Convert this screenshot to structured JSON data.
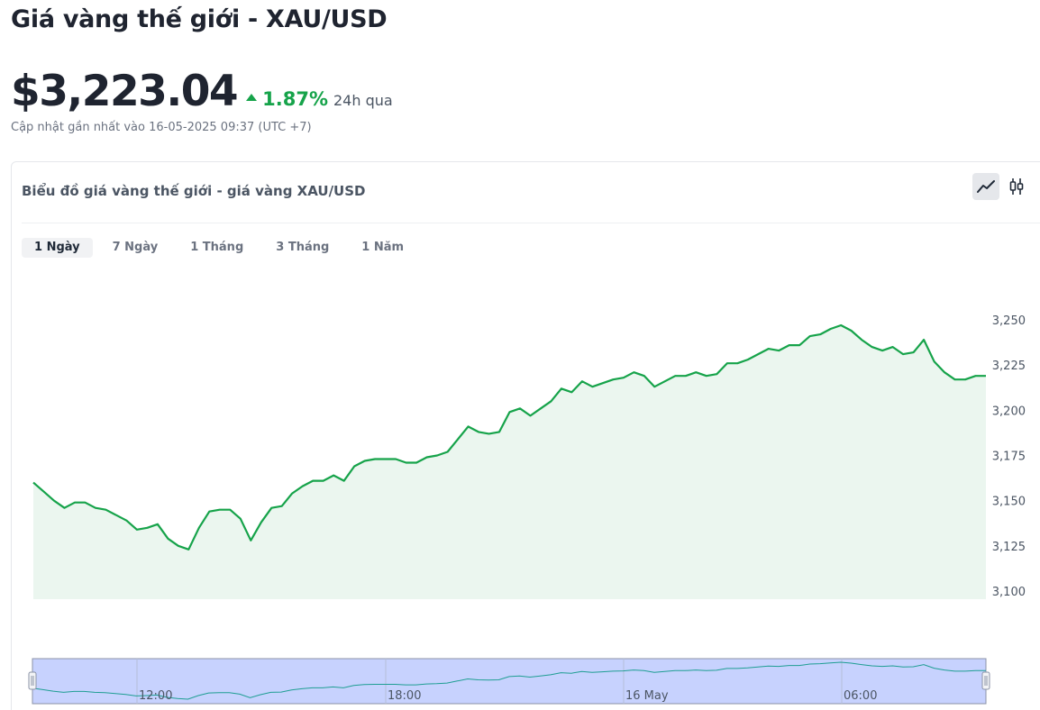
{
  "page_title": "Giá vàng thế giới - XAU/USD",
  "price": "$3,223.04",
  "change": "1.87%",
  "change_period": "24h qua",
  "updated_text": "Cập nhật gần nhất vào 16-05-2025 09:37 (UTC +7)",
  "chart_card": {
    "title": "Biểu đồ giá vàng thế giới - giá vàng XAU/USD",
    "chart_types": [
      {
        "name": "line-chart-icon",
        "active": true
      },
      {
        "name": "candlestick-icon",
        "active": false
      }
    ]
  },
  "tabs": [
    {
      "label": "1 Ngày",
      "active": true
    },
    {
      "label": "7 Ngày",
      "active": false
    },
    {
      "label": "1 Tháng",
      "active": false
    },
    {
      "label": "3 Tháng",
      "active": false
    },
    {
      "label": "1 Năm",
      "active": false
    }
  ],
  "colors": {
    "line": "#16a34a",
    "area": "#ebf6ef",
    "navigator_fill": "#c7d2fe",
    "navigator_line": "#1f9e93",
    "navigator_border": "#8b93a7"
  },
  "chart_data": {
    "type": "area",
    "ylim": [
      3100,
      3260
    ],
    "yticks": [
      3100,
      3125,
      3150,
      3175,
      3200,
      3225,
      3250
    ],
    "ytick_labels": [
      "3,100",
      "3,125",
      "3,150",
      "3,175",
      "3,200",
      "3,225",
      "3,250"
    ],
    "grid": false,
    "values": [
      3160,
      3155,
      3150,
      3146,
      3149,
      3149,
      3146,
      3145,
      3142,
      3139,
      3134,
      3135,
      3137,
      3129,
      3125,
      3123,
      3135,
      3144,
      3145,
      3145,
      3140,
      3128,
      3138,
      3146,
      3147,
      3154,
      3158,
      3161,
      3161,
      3164,
      3161,
      3169,
      3172,
      3173,
      3173,
      3173,
      3171,
      3171,
      3174,
      3175,
      3177,
      3184,
      3191,
      3188,
      3187,
      3188,
      3199,
      3201,
      3197,
      3201,
      3205,
      3212,
      3210,
      3216,
      3213,
      3215,
      3217,
      3218,
      3221,
      3219,
      3213,
      3216,
      3219,
      3219,
      3221,
      3219,
      3220,
      3226,
      3226,
      3228,
      3231,
      3234,
      3233,
      3236,
      3236,
      3241,
      3242,
      3245,
      3247,
      3244,
      3239,
      3235,
      3233,
      3235,
      3231,
      3232,
      3239,
      3227,
      3221,
      3217,
      3217,
      3219,
      3219
    ],
    "navigator": {
      "x_labels": [
        "12:00",
        "18:00",
        "16 May",
        "06:00"
      ]
    }
  }
}
